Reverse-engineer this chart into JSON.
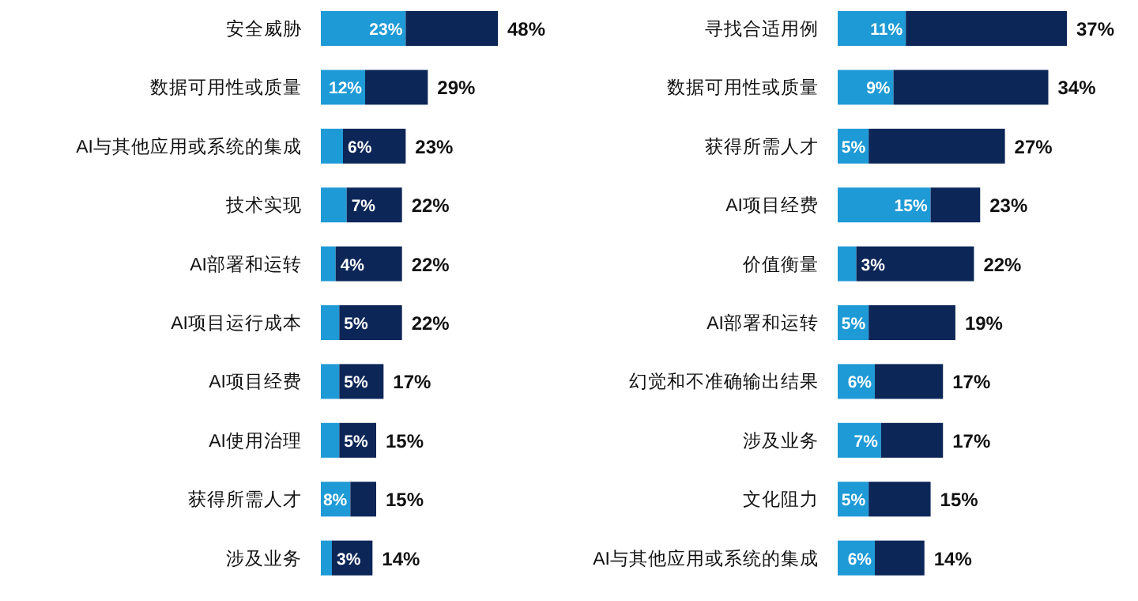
{
  "chart_data": [
    {
      "type": "bar",
      "orientation": "horizontal",
      "stacked": true,
      "categories": [
        "安全威胁",
        "数据可用性或质量",
        "AI与其他应用或系统的集成",
        "技术实现",
        "AI部署和运转",
        "AI项目运行成本",
        "AI项目经费",
        "AI使用治理",
        "获得所需人才",
        "涉及业务"
      ],
      "series": [
        {
          "color": "#1e9ad6",
          "values": [
            23,
            12,
            6,
            7,
            4,
            5,
            5,
            5,
            8,
            3
          ],
          "value_labels": [
            "23%",
            "12%",
            "6%",
            "7%",
            "4%",
            "5%",
            "5%",
            "5%",
            "8%",
            "3%"
          ]
        },
        {
          "color": "#0c2657",
          "values": [
            25,
            17,
            17,
            15,
            18,
            17,
            12,
            10,
            7,
            11
          ]
        }
      ],
      "totals": [
        "48%",
        "29%",
        "23%",
        "22%",
        "22%",
        "22%",
        "17%",
        "15%",
        "15%",
        "14%"
      ]
    },
    {
      "type": "bar",
      "orientation": "horizontal",
      "stacked": true,
      "categories": [
        "寻找合适用例",
        "数据可用性或质量",
        "获得所需人才",
        "AI项目经费",
        "价值衡量",
        "AI部署和运转",
        "幻觉和不准确输出结果",
        "涉及业务",
        "文化阻力",
        "AI与其他应用或系统的集成"
      ],
      "series": [
        {
          "color": "#1e9ad6",
          "values": [
            11,
            9,
            5,
            15,
            3,
            5,
            6,
            7,
            5,
            6
          ],
          "value_labels": [
            "11%",
            "9%",
            "5%",
            "15%",
            "3%",
            "5%",
            "6%",
            "7%",
            "5%",
            "6%"
          ]
        },
        {
          "color": "#0c2657",
          "values": [
            26,
            25,
            22,
            8,
            19,
            14,
            11,
            10,
            10,
            8
          ]
        }
      ],
      "totals": [
        "37%",
        "34%",
        "27%",
        "23%",
        "22%",
        "19%",
        "17%",
        "17%",
        "15%",
        "14%"
      ]
    }
  ]
}
